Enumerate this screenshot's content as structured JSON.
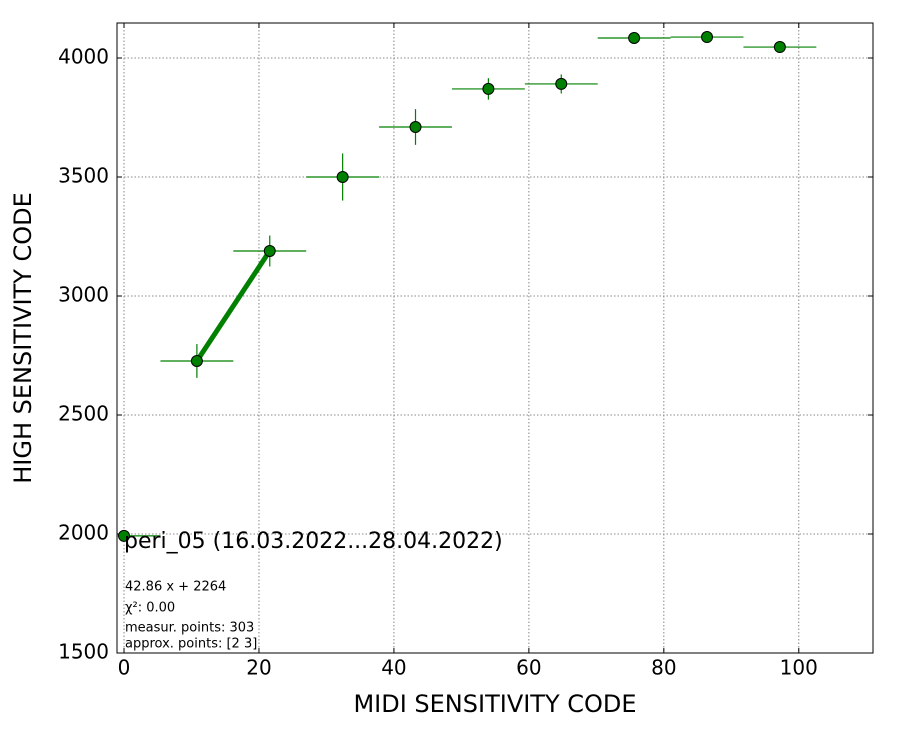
{
  "chart_data": {
    "type": "errorbar",
    "xlabel": "MIDI SENSITIVITY CODE",
    "ylabel": "HIGH SENSITIVITY CODE",
    "xlim": [
      -1.04,
      111
    ],
    "ylim": [
      1500,
      4147
    ],
    "xticks": [
      0,
      20,
      40,
      60,
      80,
      100
    ],
    "yticks": [
      1500,
      2000,
      2500,
      3000,
      3500,
      4000
    ],
    "grid": true,
    "series": [
      {
        "color": "#008000",
        "x": [
          0,
          10.8,
          21.6,
          32.4,
          43.2,
          54,
          64.8,
          75.6,
          86.4,
          97.2
        ],
        "values": [
          1992,
          2727,
          3189,
          3500,
          3710,
          3870,
          3891,
          4084,
          4088,
          4046
        ],
        "xerr": [
          5.4,
          5.4,
          5.4,
          5.4,
          5.4,
          5.4,
          5.4,
          5.4,
          5.4,
          5.4
        ],
        "yerr": [
          0,
          71,
          65,
          99,
          75,
          45,
          40,
          10,
          10,
          15
        ]
      },
      {
        "color": "#008000",
        "x": [
          10.8,
          21.6
        ],
        "values": [
          2727,
          3190
        ]
      }
    ],
    "annotations": {
      "title": "peri_05 (16.03.2022...28.04.2022)",
      "fit": "42.86 x + 2264",
      "chi2": "χ²: 0.00",
      "measured": "measur. points: 303",
      "approx": "approx. points: [2 3]"
    }
  }
}
